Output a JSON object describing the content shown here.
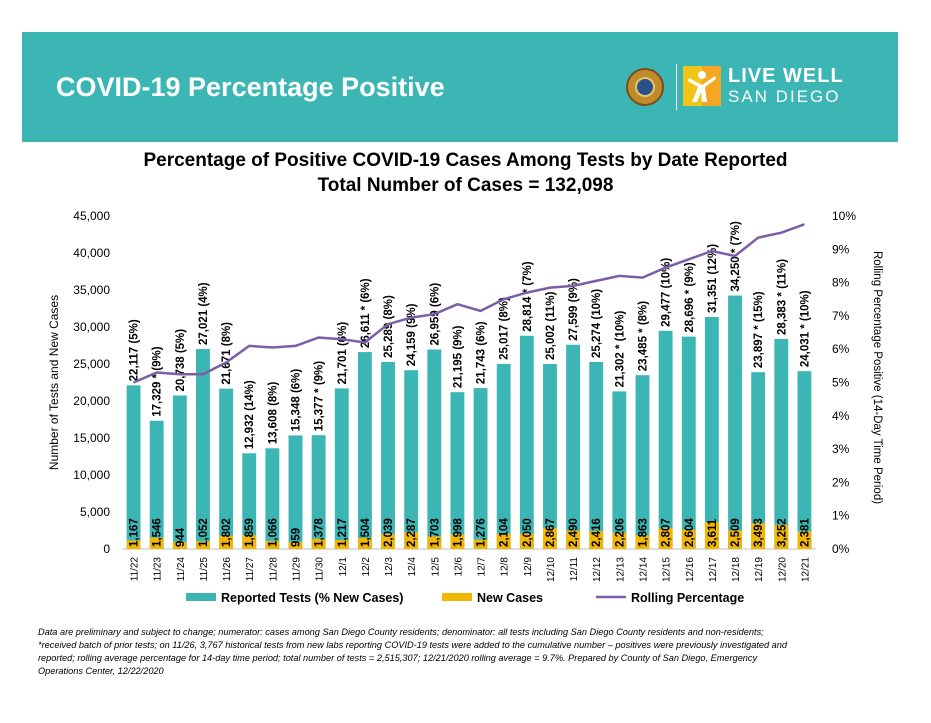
{
  "header": {
    "title": "COVID-19 Percentage Positive",
    "logo_line1": "LIVE WELL",
    "logo_line2": "SAN DIEGO"
  },
  "colors": {
    "banner": "#3cb5b5",
    "tests_bar": "#3cb5b5",
    "new_cases_bar": "#f2b705",
    "rolling_line": "#7b5ea7"
  },
  "chart_data": {
    "type": "bar",
    "title": "Percentage of Positive COVID-19 Cases Among Tests by Date Reported",
    "subtitle": "Total Number of Cases = 132,098",
    "ylabel": "Number of Tests and New Cases",
    "y2label": "Rolling Percentage Positive (14-Day Time Period)",
    "ylim": [
      0,
      45000
    ],
    "y2lim": [
      0,
      10
    ],
    "yticks": [
      "0",
      "5,000",
      "10,000",
      "15,000",
      "20,000",
      "25,000",
      "30,000",
      "35,000",
      "40,000",
      "45,000"
    ],
    "y2ticks": [
      "0%",
      "1%",
      "2%",
      "3%",
      "4%",
      "5%",
      "6%",
      "7%",
      "8%",
      "9%",
      "10%"
    ],
    "categories": [
      "11/22",
      "11/23",
      "11/24",
      "11/25",
      "11/26",
      "11/27",
      "11/28",
      "11/29",
      "11/30",
      "12/1",
      "12/2",
      "12/3",
      "12/4",
      "12/5",
      "12/6",
      "12/7",
      "12/8",
      "12/9",
      "12/10",
      "12/11",
      "12/12",
      "12/13",
      "12/14",
      "12/15",
      "12/16",
      "12/17",
      "12/18",
      "12/19",
      "12/20",
      "12/21"
    ],
    "series": [
      {
        "name": "Reported Tests (% New Cases)",
        "values": [
          22117,
          17329,
          20738,
          27021,
          21671,
          12932,
          13608,
          15348,
          15377,
          21701,
          26611,
          25289,
          24159,
          26959,
          21195,
          21743,
          25017,
          28814,
          25002,
          27599,
          25274,
          21302,
          23485,
          29477,
          28696,
          31351,
          34250,
          23897,
          28383,
          24031
        ],
        "labels": [
          "22,117 (5%)",
          "17,329 * (9%)",
          "20,738 (5%)",
          "27,021 (4%)",
          "21,671 (8%)",
          "12,932 (14%)",
          "13,608 (8%)",
          "15,348 (6%)",
          "15,377 * (9%)",
          "21,701 (6%)",
          "26,611 * (6%)",
          "25,289 (8%)",
          "24,159 (9%)",
          "26,959 (6%)",
          "21,195 (9%)",
          "21,743 (6%)",
          "25,017 (8%)",
          "28,814 * (7%)",
          "25,002 (11%)",
          "27,599 (9%)",
          "25,274 (10%)",
          "21,302 * (10%)",
          "23,485 * (8%)",
          "29,477 (10%)",
          "28,696 * (9%)",
          "31,351 (12%)",
          "34,250 * (7%)",
          "23,897 * (15%)",
          "28,383 * (11%)",
          "24,031 * (10%)"
        ]
      },
      {
        "name": "New Cases",
        "values": [
          1167,
          1546,
          944,
          1052,
          1802,
          1859,
          1066,
          959,
          1378,
          1217,
          1504,
          2039,
          2287,
          1703,
          1998,
          1276,
          2104,
          2050,
          2867,
          2490,
          2416,
          2206,
          1863,
          2807,
          2604,
          3611,
          2509,
          3493,
          3252,
          2381
        ],
        "labels": [
          "1,167",
          "1,546",
          "944",
          "1,052",
          "1,802",
          "1,859",
          "1,066",
          "959",
          "1,378",
          "1,217",
          "1,504",
          "2,039",
          "2,287",
          "1,703",
          "1,998",
          "1,276",
          "2,104",
          "2,050",
          "2,867",
          "2,490",
          "2,416",
          "2,206",
          "1,863",
          "2,807",
          "2,604",
          "3,611",
          "2,509",
          "3,493",
          "3,252",
          "2,381"
        ]
      },
      {
        "name": "Rolling Percentage",
        "values": [
          5.0,
          5.3,
          5.25,
          5.25,
          5.6,
          6.1,
          6.05,
          6.1,
          6.35,
          6.3,
          6.2,
          6.75,
          6.95,
          7.05,
          7.35,
          7.15,
          7.5,
          7.7,
          7.85,
          7.9,
          8.05,
          8.2,
          8.15,
          8.45,
          8.7,
          8.95,
          8.8,
          9.35,
          9.5,
          9.75
        ]
      }
    ],
    "legend": [
      "Reported Tests (% New Cases)",
      "New Cases",
      "Rolling Percentage"
    ],
    "legend_position": "bottom"
  },
  "footnote": {
    "line1": "Data are preliminary and subject to change; numerator: cases among San Diego County residents; denominator: all tests including San Diego County residents and non-residents;",
    "line2": "*received batch of prior tests; on 11/26, 3,767 historical tests from new labs reporting COVID-19 tests were added to the cumulative number – positives were previously investigated and",
    "line3": "reported; rolling average percentage for 14-day time period; total number of tests = 2,515,307; 12/21/2020 rolling average = 9.7%. Prepared by County of San Diego, Emergency",
    "line4": "Operations Center, 12/22/2020"
  }
}
